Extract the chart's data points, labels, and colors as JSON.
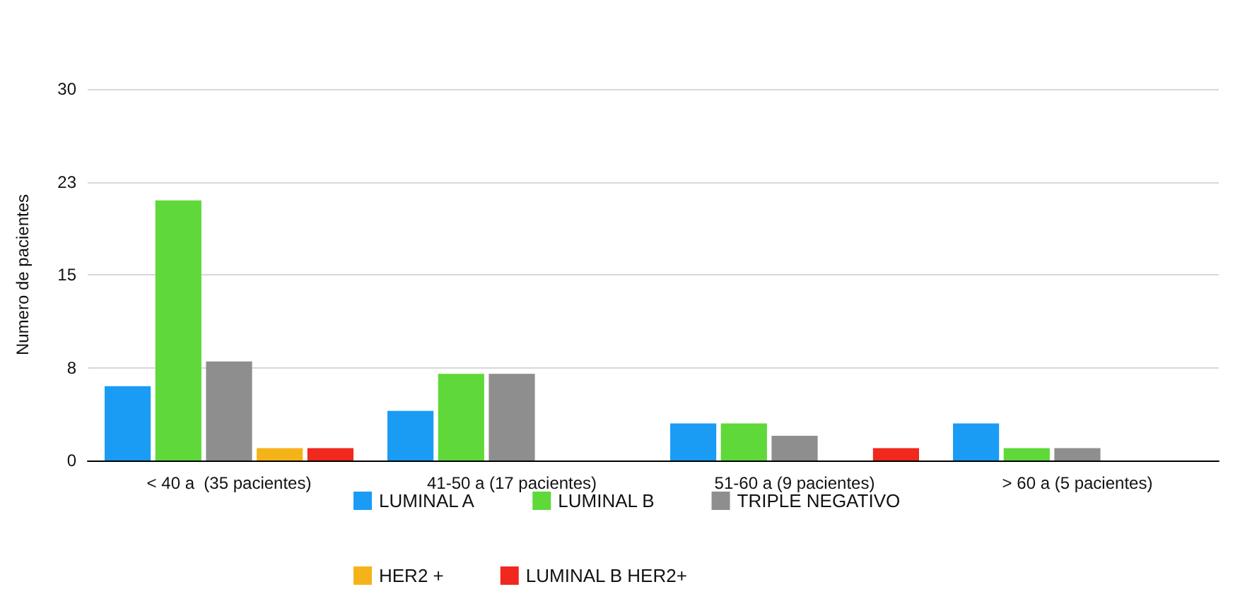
{
  "chart_data": {
    "type": "bar",
    "ylabel": "Numero de pacientes",
    "categories": [
      "< 40 a  (35 pacientes)",
      "41-50 a (17 pacientes)",
      "51-60 a (9 pacientes)",
      "> 60 a (5 pacientes)"
    ],
    "series": [
      {
        "name": "LUMINAL A",
        "color": "#1a9cf5",
        "values": [
          6,
          4,
          3,
          3
        ]
      },
      {
        "name": "LUMINAL B",
        "color": "#5fd83a",
        "values": [
          21,
          7,
          3,
          1
        ]
      },
      {
        "name": "TRIPLE NEGATIVO",
        "color": "#8e8e8e",
        "values": [
          8,
          7,
          2,
          1
        ]
      },
      {
        "name": "HER2 +",
        "color": "#f5b31a",
        "values": [
          1,
          0,
          0,
          0
        ]
      },
      {
        "name": "LUMINAL B HER2+",
        "color": "#f0281e",
        "values": [
          1,
          0,
          1,
          0
        ]
      }
    ],
    "ylim": [
      0,
      30
    ],
    "yticks": [
      0,
      {
        "value": 7.5,
        "label": "8"
      },
      15,
      {
        "value": 22.5,
        "label": "23"
      },
      30
    ],
    "grid": "y",
    "legend": "bottom"
  }
}
